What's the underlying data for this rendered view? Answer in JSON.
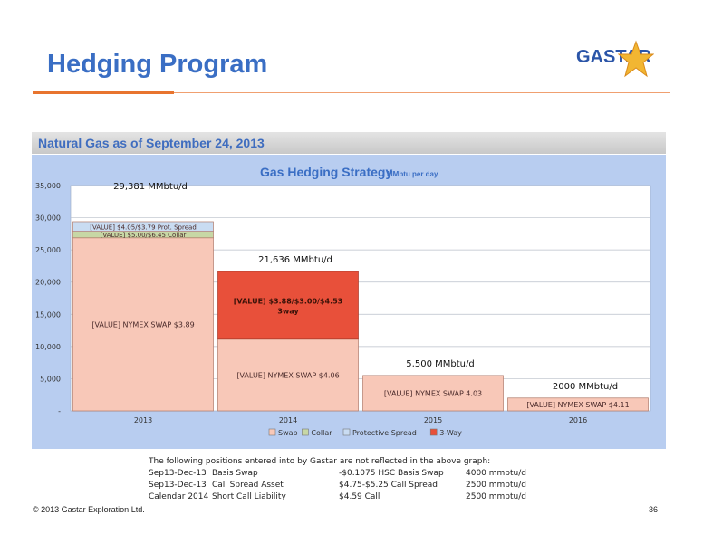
{
  "header": {
    "title": "Hedging Program",
    "logo_text": "GASTAR"
  },
  "section": {
    "title": "Natural Gas as of September 24, 2013"
  },
  "colors": {
    "title_blue": "#3a6ec4",
    "accent_orange": "#e8742e",
    "swap": "#f8c8b8",
    "collar": "#c7d7a5",
    "protective_spread": "#c9dcf2",
    "three_way": "#e8503a",
    "panel": "#b8cdf0"
  },
  "chart_data": {
    "type": "bar",
    "stacked": true,
    "title": "Gas Hedging Strategy",
    "subtitle": "MMbtu per day",
    "categories": [
      "2013",
      "2014",
      "2015",
      "2016"
    ],
    "ylim": [
      0,
      35000
    ],
    "yticks": [
      "-",
      "5,000",
      "10,000",
      "15,000",
      "20,000",
      "25,000",
      "30,000",
      "35,000"
    ],
    "grid": true,
    "legend_position": "bottom",
    "series": [
      {
        "name": "Swap",
        "key": "swap",
        "values": [
          26881,
          11136,
          5500,
          2000
        ]
      },
      {
        "name": "Collar",
        "key": "collar",
        "values": [
          1000,
          0,
          0,
          0
        ]
      },
      {
        "name": "Protective Spread",
        "key": "protective_spread",
        "values": [
          1500,
          0,
          0,
          0
        ]
      },
      {
        "name": "3-Way",
        "key": "three_way",
        "values": [
          0,
          10500,
          0,
          0
        ]
      }
    ],
    "totals": [
      "29,381 MMbtu/d",
      "21,636 MMbtu/d",
      "5,500 MMbtu/d",
      "2000 MMbtu/d"
    ],
    "bar_labels": [
      [
        "[VALUE] NYMEX SWAP $3.89",
        "[VALUE] $5.00/$6.45 Collar",
        "[VALUE] $4.05/$3.79 Prot. Spread",
        ""
      ],
      [
        "[VALUE]  NYMEX SWAP $4.06",
        "",
        "",
        "[VALUE] $3.88/$3.00/$4.53 3way"
      ],
      [
        "[VALUE]  NYMEX SWAP 4.03",
        "",
        "",
        ""
      ],
      [
        "[VALUE]   NYMEX SWAP $4.11",
        "",
        "",
        ""
      ]
    ]
  },
  "note": {
    "intro": "The following positions entered into by Gastar are not reflected in the above graph:",
    "rows": [
      {
        "period": "Sep13-Dec-13",
        "type": "Basis Swap",
        "detail": "-$0.1075 HSC Basis Swap",
        "volume": "4000 mmbtu/d"
      },
      {
        "period": "Sep13-Dec-13",
        "type": "Call Spread Asset",
        "detail": "$4.75-$5.25 Call Spread",
        "volume": "2500 mmbtu/d"
      },
      {
        "period": "Calendar 2014",
        "type": "Short Call   Liability",
        "detail": "$4.59 Call",
        "volume": "2500 mmbtu/d"
      }
    ]
  },
  "footer": {
    "copyright": "© 2013 Gastar Exploration Ltd.",
    "page": "36"
  }
}
